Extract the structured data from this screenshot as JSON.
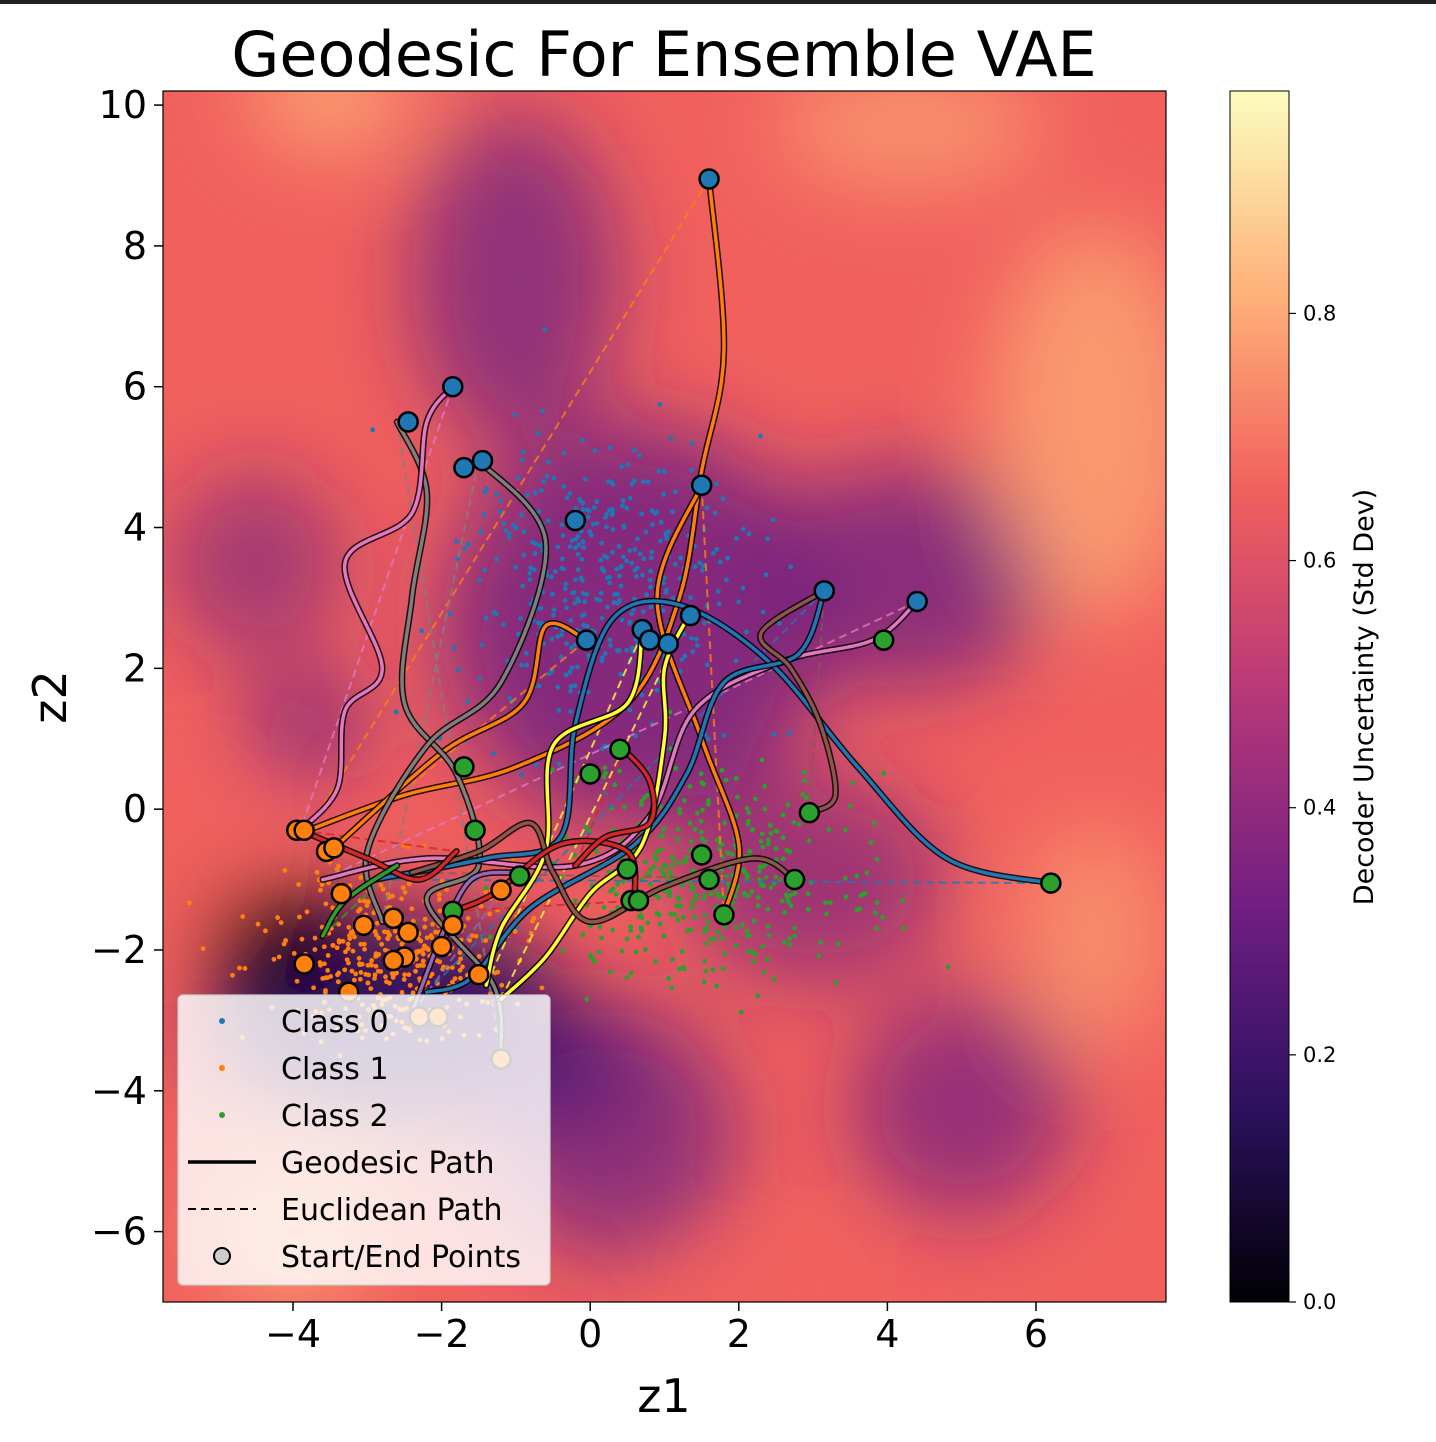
{
  "chart_data": {
    "type": "scatter",
    "title": "Geodesic For Ensemble VAE",
    "xlabel": "z1",
    "ylabel": "z2",
    "xlim": [
      -5.75,
      7.75
    ],
    "ylim": [
      -7.0,
      10.2
    ],
    "xticks": [
      -4,
      -2,
      0,
      2,
      4,
      6
    ],
    "xtick_labels": [
      "−4",
      "−2",
      "0",
      "2",
      "4",
      "6"
    ],
    "yticks": [
      -6,
      -4,
      -2,
      0,
      2,
      4,
      6,
      8,
      10
    ],
    "ytick_labels": [
      "−6",
      "−4",
      "−2",
      "0",
      "2",
      "4",
      "6",
      "8",
      "10"
    ],
    "grid": false,
    "background": "decoder uncertainty heatmap (magma colormap)",
    "colorbar": {
      "label": "Decoder Uncertainty (Std Dev)",
      "range": [
        0.0,
        0.98
      ],
      "ticks": [
        0.0,
        0.2,
        0.4,
        0.6,
        0.8
      ],
      "tick_labels": [
        "0.0",
        "0.2",
        "0.4",
        "0.6",
        "0.8"
      ],
      "colormap_stops": [
        "#000004",
        "#2c115f",
        "#721f81",
        "#b73779",
        "#f1605d",
        "#feb078",
        "#fcfdbf"
      ]
    },
    "legend": {
      "position": "lower-left",
      "entries": [
        {
          "label": "Class 0",
          "kind": "dot",
          "color": "#1f77b4"
        },
        {
          "label": "Class 1",
          "kind": "dot",
          "color": "#ff7f0e"
        },
        {
          "label": "Class 2",
          "kind": "dot",
          "color": "#2ca02c"
        },
        {
          "label": "Geodesic Path",
          "kind": "line",
          "color": "#000000"
        },
        {
          "label": "Euclidean Path",
          "kind": "dashed",
          "color": "#000000"
        },
        {
          "label": "Start/End Points",
          "kind": "marker",
          "color": "#cccccc"
        }
      ]
    },
    "clusters": [
      {
        "name": "Class 0",
        "color": "#1f77b4",
        "center": [
          0.2,
          3.2
        ],
        "spread": [
          1.2,
          1.3
        ],
        "count": 420
      },
      {
        "name": "Class 1",
        "color": "#ff7f0e",
        "center": [
          -2.6,
          -2.0
        ],
        "spread": [
          1.0,
          0.8
        ],
        "count": 420
      },
      {
        "name": "Class 2",
        "color": "#2ca02c",
        "center": [
          1.5,
          -1.0
        ],
        "spread": [
          1.3,
          0.9
        ],
        "count": 420
      }
    ],
    "paths": [
      {
        "color": "#ff7f0e",
        "points": [
          [
            1.6,
            8.95
          ],
          [
            1.8,
            6.5
          ],
          [
            1.5,
            4.8
          ],
          [
            1.2,
            3.0
          ],
          [
            0.5,
            1.5
          ],
          [
            -1.0,
            0.6
          ],
          [
            -2.5,
            0.2
          ],
          [
            -3.8,
            -0.3
          ]
        ]
      },
      {
        "color": "#ff7f0e",
        "points": [
          [
            1.5,
            4.6
          ],
          [
            0.9,
            3.0
          ],
          [
            1.5,
            1.0
          ],
          [
            2.0,
            -0.5
          ],
          [
            1.8,
            -1.5
          ]
        ]
      },
      {
        "color": "#ff7f0e",
        "points": [
          [
            -0.05,
            2.4
          ],
          [
            -0.6,
            2.6
          ],
          [
            -0.9,
            1.5
          ],
          [
            -2.0,
            0.8
          ],
          [
            -3.5,
            -0.6
          ]
        ]
      },
      {
        "color": "#7f7f7f",
        "points": [
          [
            -2.6,
            5.5
          ],
          [
            -2.2,
            4.5
          ],
          [
            -2.4,
            3.0
          ],
          [
            -2.5,
            1.5
          ],
          [
            -1.8,
            0.5
          ],
          [
            -1.5,
            -0.8
          ],
          [
            -2.2,
            -1.3
          ],
          [
            -1.3,
            -2.5
          ],
          [
            -1.2,
            -3.5
          ]
        ]
      },
      {
        "color": "#7f7f7f",
        "points": [
          [
            -1.5,
            4.95
          ],
          [
            -0.6,
            3.8
          ],
          [
            -1.2,
            1.8
          ],
          [
            -2.2,
            0.9
          ],
          [
            -3.0,
            -0.6
          ],
          [
            -2.8,
            -1.6
          ]
        ]
      },
      {
        "color": "#e377c2",
        "points": [
          [
            -1.85,
            6.0
          ],
          [
            -2.2,
            5.5
          ],
          [
            -2.4,
            4.2
          ],
          [
            -3.3,
            3.5
          ],
          [
            -2.8,
            2.0
          ],
          [
            -3.3,
            1.4
          ],
          [
            -3.4,
            0.3
          ],
          [
            -3.9,
            -0.3
          ]
        ]
      },
      {
        "color": "#e377c2",
        "points": [
          [
            4.4,
            2.95
          ],
          [
            3.8,
            2.4
          ],
          [
            2.6,
            2.1
          ],
          [
            1.4,
            1.4
          ],
          [
            0.8,
            -0.1
          ],
          [
            -0.2,
            -0.8
          ],
          [
            -2.2,
            -0.7
          ],
          [
            -3.6,
            -1.0
          ]
        ]
      },
      {
        "color": "#1f77b4",
        "points": [
          [
            6.2,
            -1.05
          ],
          [
            4.8,
            -0.7
          ],
          [
            3.6,
            0.6
          ],
          [
            2.4,
            2.1
          ],
          [
            1.2,
            2.9
          ],
          [
            0.3,
            2.7
          ],
          [
            -0.2,
            1.2
          ],
          [
            -0.4,
            -0.4
          ],
          [
            -1.4,
            -0.7
          ],
          [
            -2.9,
            -1.0
          ]
        ]
      },
      {
        "color": "#1f77b4",
        "points": [
          [
            3.15,
            3.1
          ],
          [
            2.8,
            2.2
          ],
          [
            1.8,
            1.8
          ],
          [
            1.3,
            0.5
          ],
          [
            0.6,
            -0.5
          ],
          [
            -0.8,
            -1.4
          ],
          [
            -1.6,
            -2.4
          ],
          [
            -2.2,
            -2.6
          ]
        ]
      },
      {
        "color": "#ffff33",
        "points": [
          [
            1.3,
            2.7
          ],
          [
            1.0,
            2.0
          ],
          [
            1.0,
            1.0
          ],
          [
            0.7,
            -0.5
          ],
          [
            0.0,
            -1.2
          ],
          [
            -0.6,
            -2.1
          ],
          [
            -1.2,
            -2.7
          ]
        ]
      },
      {
        "color": "#ffff33",
        "points": [
          [
            0.7,
            2.5
          ],
          [
            0.5,
            1.5
          ],
          [
            -0.5,
            0.9
          ],
          [
            -0.6,
            -0.6
          ],
          [
            -1.2,
            -1.7
          ],
          [
            -1.4,
            -2.5
          ]
        ]
      },
      {
        "color": "#8c564b",
        "points": [
          [
            2.95,
            -0.05
          ],
          [
            3.3,
            0.2
          ],
          [
            3.1,
            1.2
          ],
          [
            2.7,
            2.0
          ],
          [
            2.3,
            2.5
          ],
          [
            3.15,
            3.1
          ]
        ]
      },
      {
        "color": "#8c564b",
        "points": [
          [
            2.75,
            -1.0
          ],
          [
            2.2,
            -0.7
          ],
          [
            1.0,
            -1.1
          ],
          [
            0.0,
            -1.6
          ],
          [
            -0.5,
            -0.9
          ],
          [
            -0.8,
            -0.2
          ],
          [
            -1.5,
            -0.6
          ],
          [
            -2.4,
            -0.9
          ]
        ]
      },
      {
        "color": "#d62728",
        "points": [
          [
            -1.85,
            -1.45
          ],
          [
            -1.3,
            -1.2
          ],
          [
            -0.4,
            -0.5
          ],
          [
            0.5,
            -0.6
          ],
          [
            0.6,
            -1.3
          ]
        ]
      },
      {
        "color": "#d62728",
        "points": [
          [
            0.45,
            0.85
          ],
          [
            0.8,
            0.4
          ],
          [
            0.8,
            -0.2
          ],
          [
            0.2,
            -0.4
          ],
          [
            -0.2,
            -0.8
          ]
        ]
      },
      {
        "color": "#d62728",
        "points": [
          [
            -3.9,
            -0.3
          ],
          [
            -3.0,
            -0.7
          ],
          [
            -2.3,
            -1.0
          ],
          [
            -1.8,
            -0.6
          ]
        ]
      },
      {
        "color": "#2ca02c",
        "points": [
          [
            -3.6,
            -1.8
          ],
          [
            -3.3,
            -1.3
          ],
          [
            -2.6,
            -0.8
          ]
        ]
      },
      {
        "color": "#9467bd",
        "points": [
          [
            -2.4,
            -2.9
          ],
          [
            -2.0,
            -1.8
          ],
          [
            -1.6,
            -1.0
          ],
          [
            -1.0,
            -0.9
          ]
        ]
      }
    ],
    "markers": [
      {
        "x": 1.6,
        "y": 8.95,
        "color": "#1f77b4"
      },
      {
        "x": -1.85,
        "y": 6.0,
        "color": "#1f77b4"
      },
      {
        "x": -2.45,
        "y": 5.5,
        "color": "#1f77b4"
      },
      {
        "x": -1.7,
        "y": 4.85,
        "color": "#1f77b4"
      },
      {
        "x": -1.45,
        "y": 4.95,
        "color": "#1f77b4"
      },
      {
        "x": -0.2,
        "y": 4.1,
        "color": "#1f77b4"
      },
      {
        "x": 1.5,
        "y": 4.6,
        "color": "#1f77b4"
      },
      {
        "x": -0.05,
        "y": 2.4,
        "color": "#1f77b4"
      },
      {
        "x": 0.7,
        "y": 2.55,
        "color": "#1f77b4"
      },
      {
        "x": 0.8,
        "y": 2.4,
        "color": "#1f77b4"
      },
      {
        "x": 1.05,
        "y": 2.35,
        "color": "#1f77b4"
      },
      {
        "x": 1.35,
        "y": 2.75,
        "color": "#1f77b4"
      },
      {
        "x": 3.15,
        "y": 3.1,
        "color": "#1f77b4"
      },
      {
        "x": 4.4,
        "y": 2.95,
        "color": "#1f77b4"
      },
      {
        "x": 3.95,
        "y": 2.4,
        "color": "#2ca02c"
      },
      {
        "x": 2.95,
        "y": -0.05,
        "color": "#2ca02c"
      },
      {
        "x": 6.2,
        "y": -1.05,
        "color": "#2ca02c"
      },
      {
        "x": 2.75,
        "y": -1.0,
        "color": "#2ca02c"
      },
      {
        "x": 1.5,
        "y": -0.65,
        "color": "#2ca02c"
      },
      {
        "x": 1.6,
        "y": -1.0,
        "color": "#2ca02c"
      },
      {
        "x": 1.8,
        "y": -1.5,
        "color": "#2ca02c"
      },
      {
        "x": 0.5,
        "y": -0.85,
        "color": "#2ca02c"
      },
      {
        "x": 0.55,
        "y": -1.3,
        "color": "#2ca02c"
      },
      {
        "x": 0.65,
        "y": -1.3,
        "color": "#2ca02c"
      },
      {
        "x": 0.4,
        "y": 0.85,
        "color": "#2ca02c"
      },
      {
        "x": 0.0,
        "y": 0.5,
        "color": "#2ca02c"
      },
      {
        "x": -1.7,
        "y": 0.6,
        "color": "#2ca02c"
      },
      {
        "x": -1.55,
        "y": -0.3,
        "color": "#2ca02c"
      },
      {
        "x": -0.95,
        "y": -0.95,
        "color": "#2ca02c"
      },
      {
        "x": -1.85,
        "y": -1.45,
        "color": "#2ca02c"
      },
      {
        "x": -3.95,
        "y": -0.3,
        "color": "#ff7f0e"
      },
      {
        "x": -3.85,
        "y": -0.3,
        "color": "#ff7f0e"
      },
      {
        "x": -3.55,
        "y": -0.6,
        "color": "#ff7f0e"
      },
      {
        "x": -3.45,
        "y": -0.55,
        "color": "#ff7f0e"
      },
      {
        "x": -3.35,
        "y": -1.2,
        "color": "#ff7f0e"
      },
      {
        "x": -3.05,
        "y": -1.65,
        "color": "#ff7f0e"
      },
      {
        "x": -2.65,
        "y": -1.55,
        "color": "#ff7f0e"
      },
      {
        "x": -2.45,
        "y": -1.75,
        "color": "#ff7f0e"
      },
      {
        "x": -1.85,
        "y": -1.65,
        "color": "#ff7f0e"
      },
      {
        "x": -2.0,
        "y": -1.95,
        "color": "#ff7f0e"
      },
      {
        "x": -2.5,
        "y": -2.1,
        "color": "#ff7f0e"
      },
      {
        "x": -2.65,
        "y": -2.15,
        "color": "#ff7f0e"
      },
      {
        "x": -3.85,
        "y": -2.2,
        "color": "#ff7f0e"
      },
      {
        "x": -3.25,
        "y": -2.6,
        "color": "#ff7f0e"
      },
      {
        "x": -1.2,
        "y": -1.15,
        "color": "#ff7f0e"
      },
      {
        "x": -1.5,
        "y": -2.35,
        "color": "#ff7f0e"
      },
      {
        "x": -2.3,
        "y": -2.95,
        "color": "#ff7f0e"
      },
      {
        "x": -2.05,
        "y": -2.95,
        "color": "#ff7f0e"
      },
      {
        "x": -1.2,
        "y": -3.55,
        "color": "#ff7f0e"
      }
    ]
  }
}
